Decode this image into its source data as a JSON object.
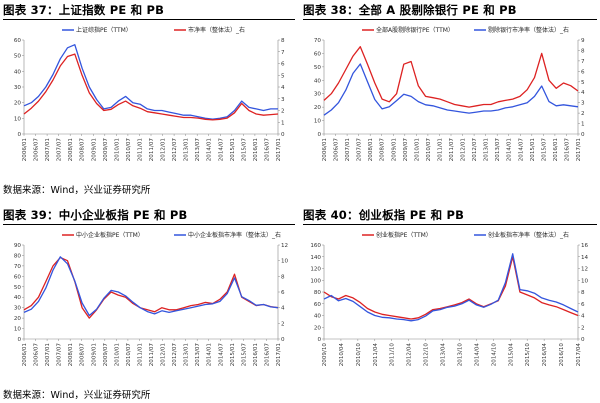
{
  "panels": [
    {
      "title": "图表 37：上证指数 PE 和 PB",
      "chart_data": {
        "type": "line",
        "x_ticks": [
          "2006/01",
          "2006/07",
          "2007/01",
          "2007/07",
          "2008/01",
          "2008/07",
          "2009/01",
          "2009/07",
          "2010/01",
          "2010/07",
          "2011/01",
          "2011/07",
          "2012/01",
          "2012/07",
          "2013/01",
          "2013/07",
          "2014/01",
          "2014/07",
          "2015/01",
          "2015/07",
          "2016/01",
          "2016/07",
          "2017/01"
        ],
        "y_left_ticks": [
          "0",
          "10",
          "20",
          "30",
          "40",
          "50",
          "60"
        ],
        "y_right_ticks": [
          "0",
          "1",
          "2",
          "3",
          "4",
          "5",
          "6",
          "7",
          "8"
        ],
        "ylim_left": [
          0,
          60
        ],
        "ylim_right": [
          0,
          8
        ],
        "series": [
          {
            "name": "上证综指PE（TTM）",
            "axis": "left",
            "color": "#3355dd",
            "values": [
              18,
              20,
              24,
              30,
              38,
              48,
              55,
              57,
              42,
              30,
              22,
              16,
              17,
              21,
              24,
              20,
              19,
              16,
              15,
              15,
              14,
              13,
              12,
              12,
              11,
              10,
              9.5,
              10,
              11,
              15,
              21,
              17,
              16,
              15,
              16,
              16
            ]
          },
          {
            "name": "市净率（整体法）_右",
            "axis": "right",
            "color": "#dd2222",
            "values": [
              1.7,
              2.2,
              2.8,
              3.6,
              4.6,
              5.8,
              6.6,
              6.8,
              5.0,
              3.5,
              2.6,
              2.0,
              2.1,
              2.5,
              2.8,
              2.4,
              2.2,
              1.9,
              1.8,
              1.7,
              1.6,
              1.5,
              1.4,
              1.4,
              1.35,
              1.25,
              1.2,
              1.25,
              1.35,
              1.8,
              2.6,
              2.0,
              1.7,
              1.6,
              1.65,
              1.7
            ]
          }
        ]
      },
      "source": ""
    },
    {
      "title": "图表 38：全部 A 股剔除银行 PE 和 PB",
      "chart_data": {
        "type": "line",
        "x_ticks": [
          "2006/01",
          "2006/07",
          "2007/01",
          "2007/07",
          "2008/01",
          "2008/07",
          "2009/01",
          "2009/07",
          "2010/01",
          "2010/07",
          "2011/01",
          "2011/07",
          "2012/01",
          "2012/07",
          "2013/01",
          "2013/07",
          "2014/01",
          "2014/07",
          "2015/01",
          "2015/07",
          "2016/01",
          "2016/07",
          "2017/01"
        ],
        "y_left_ticks": [
          "0",
          "10",
          "20",
          "30",
          "40",
          "50",
          "60",
          "70"
        ],
        "y_right_ticks": [
          "0",
          "1",
          "2",
          "3",
          "4",
          "5",
          "6",
          "7",
          "8",
          "9"
        ],
        "ylim_left": [
          0,
          70
        ],
        "ylim_right": [
          0,
          9
        ],
        "series": [
          {
            "name": "全部A股剔除银行PE（TTM）",
            "axis": "left",
            "color": "#dd2222",
            "values": [
              25,
              30,
              38,
              48,
              58,
              65,
              52,
              38,
              26,
              24,
              30,
              52,
              54,
              36,
              28,
              27,
              26,
              24,
              22,
              21,
              20,
              21,
              22,
              22,
              24,
              25,
              26,
              28,
              33,
              42,
              60,
              40,
              34,
              38,
              36,
              32
            ]
          },
          {
            "name": "剔除银行市净率（整体法）_右",
            "axis": "right",
            "color": "#3355dd",
            "values": [
              1.8,
              2.3,
              3.0,
              4.2,
              5.8,
              6.7,
              5.0,
              3.3,
              2.4,
              2.6,
              3.2,
              3.8,
              3.6,
              3.1,
              2.8,
              2.7,
              2.5,
              2.3,
              2.2,
              2.1,
              2.0,
              2.1,
              2.2,
              2.2,
              2.3,
              2.5,
              2.6,
              2.8,
              3.0,
              3.6,
              4.6,
              3.1,
              2.7,
              2.8,
              2.7,
              2.6
            ]
          }
        ]
      },
      "source": "数据来源：Wind，兴业证券研究所"
    },
    {
      "title": "图表 39：中小企业板指 PE 和 PB",
      "chart_data": {
        "type": "line",
        "x_ticks": [
          "2006/01",
          "2006/07",
          "2007/01",
          "2007/07",
          "2008/01",
          "2008/07",
          "2009/01",
          "2009/07",
          "2010/01",
          "2010/07",
          "2011/01",
          "2011/07",
          "2012/01",
          "2012/07",
          "2013/01",
          "2013/07",
          "2014/01",
          "2014/07",
          "2015/01",
          "2015/07",
          "2016/01",
          "2016/07",
          "2017/01"
        ],
        "y_left_ticks": [
          "0",
          "10",
          "20",
          "30",
          "40",
          "50",
          "60",
          "70",
          "80",
          "90"
        ],
        "y_right_ticks": [
          "0",
          "2",
          "4",
          "6",
          "8",
          "10",
          "12"
        ],
        "ylim_left": [
          0,
          90
        ],
        "ylim_right": [
          0,
          12
        ],
        "series": [
          {
            "name": "中小企业板指PE（TTM）",
            "axis": "left",
            "color": "#dd2222",
            "values": [
              28,
              32,
              40,
              55,
              70,
              78,
              75,
              55,
              30,
              20,
              28,
              38,
              45,
              42,
              40,
              34,
              30,
              28,
              26,
              30,
              28,
              28,
              30,
              32,
              33,
              35,
              34,
              38,
              45,
              62,
              40,
              36,
              32,
              33,
              31,
              30
            ]
          },
          {
            "name": "中小企业板指市净率（整体法）_右",
            "axis": "right",
            "color": "#3355dd",
            "values": [
              3.4,
              3.8,
              4.8,
              6.5,
              8.8,
              10.5,
              9.6,
              7.4,
              4.6,
              3.0,
              3.8,
              5.2,
              6.2,
              6.0,
              5.5,
              4.7,
              4.0,
              3.5,
              3.2,
              3.6,
              3.4,
              3.6,
              3.8,
              4.0,
              4.2,
              4.4,
              4.5,
              4.8,
              5.8,
              7.8,
              5.4,
              4.9,
              4.3,
              4.4,
              4.1,
              4.0
            ]
          }
        ]
      },
      "source": "数据来源：Wind，兴业证券研究所"
    },
    {
      "title": "图表 40：创业板指 PE 和 PB",
      "chart_data": {
        "type": "line",
        "x_ticks": [
          "2009/10",
          "2010/04",
          "2010/10",
          "2011/04",
          "2011/10",
          "2012/04",
          "2012/10",
          "2013/04",
          "2013/10",
          "2014/04",
          "2014/10",
          "2015/04",
          "2015/10",
          "2016/04",
          "2016/10",
          "2017/04"
        ],
        "y_left_ticks": [
          "0",
          "20",
          "40",
          "60",
          "80",
          "100",
          "120",
          "140",
          "160"
        ],
        "y_right_ticks": [
          "0",
          "2",
          "4",
          "6",
          "8",
          "10",
          "12",
          "14",
          "16"
        ],
        "ylim_left": [
          0,
          160
        ],
        "ylim_right": [
          0,
          16
        ],
        "series": [
          {
            "name": "创业板指PE（TTM）",
            "axis": "left",
            "color": "#dd2222",
            "values": [
              80,
              72,
              68,
              74,
              70,
              62,
              52,
              46,
              42,
              40,
              38,
              36,
              34,
              36,
              42,
              50,
              52,
              55,
              58,
              62,
              68,
              60,
              55,
              60,
              65,
              90,
              140,
              80,
              75,
              70,
              62,
              58,
              55,
              50,
              45,
              40
            ]
          },
          {
            "name": "创业板指市净率（整体法）_右",
            "axis": "right",
            "color": "#3355dd",
            "values": [
              6.8,
              7.4,
              6.5,
              6.9,
              6.4,
              5.5,
              4.6,
              4.0,
              3.7,
              3.6,
              3.4,
              3.3,
              3.1,
              3.3,
              3.9,
              4.8,
              5.0,
              5.4,
              5.6,
              6.0,
              6.6,
              5.8,
              5.4,
              5.9,
              6.6,
              9.6,
              14.5,
              8.4,
              8.2,
              7.8,
              7.0,
              6.6,
              6.3,
              5.8,
              5.2,
              4.6
            ]
          }
        ]
      },
      "source": ""
    }
  ],
  "footer_source": "数据来源：Wind，兴业证券研究所"
}
